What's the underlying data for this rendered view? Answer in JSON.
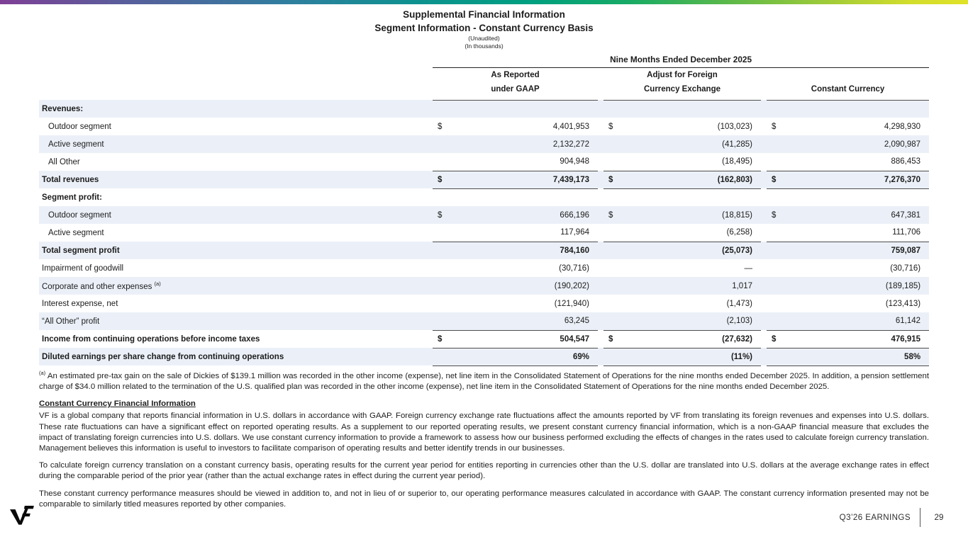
{
  "slide": {
    "title1": "Supplemental Financial Information",
    "title2": "Segment Information - Constant Currency Basis",
    "unaudited": "(Unaudited)",
    "in_thousands": "(In thousands)"
  },
  "table": {
    "period_header": "Nine Months Ended December 2025",
    "col_headers": [
      {
        "line1": "As Reported",
        "line2": "under GAAP"
      },
      {
        "line1": "Adjust for Foreign",
        "line2": "Currency Exchange"
      },
      {
        "line1": "",
        "line2": "Constant Currency"
      }
    ],
    "rows": [
      {
        "label": "Revenues:",
        "bold": true,
        "stripe": true
      },
      {
        "label": "Outdoor segment",
        "indent": true,
        "d1": "$",
        "v1": "4,401,953",
        "d2": "$",
        "v2": "(103,023)",
        "d3": "$",
        "v3": "4,298,930"
      },
      {
        "label": "Active segment",
        "indent": true,
        "stripe": true,
        "v1": "2,132,272",
        "v2": "(41,285)",
        "v3": "2,090,987"
      },
      {
        "label": "All Other",
        "indent": true,
        "v1": "904,948",
        "v2": "(18,495)",
        "v3": "886,453",
        "rule": true
      },
      {
        "label": "Total revenues",
        "bold": true,
        "stripe": true,
        "d1": "$",
        "v1": "7,439,173",
        "d2": "$",
        "v2": "(162,803)",
        "d3": "$",
        "v3": "7,276,370",
        "rule": true
      },
      {
        "label": "Segment profit:",
        "bold": true
      },
      {
        "label": "Outdoor segment",
        "indent": true,
        "stripe": true,
        "d1": "$",
        "v1": "666,196",
        "d2": "$",
        "v2": "(18,815)",
        "d3": "$",
        "v3": "647,381"
      },
      {
        "label": "Active segment",
        "indent": true,
        "v1": "117,964",
        "v2": "(6,258)",
        "v3": "111,706",
        "rule": true
      },
      {
        "label": "Total segment profit",
        "bold": true,
        "stripe": true,
        "v1": "784,160",
        "v2": "(25,073)",
        "v3": "759,087"
      },
      {
        "label": "Impairment of goodwill",
        "v1": "(30,716)",
        "v2": "—",
        "v3": "(30,716)"
      },
      {
        "label": "Corporate and other expenses",
        "sup": "(a)",
        "stripe": true,
        "v1": "(190,202)",
        "v2": "1,017",
        "v3": "(189,185)"
      },
      {
        "label": "Interest expense, net",
        "v1": "(121,940)",
        "v2": "(1,473)",
        "v3": "(123,413)"
      },
      {
        "label": "“All Other” profit",
        "stripe": true,
        "v1": "63,245",
        "v2": "(2,103)",
        "v3": "61,142",
        "rule": true
      },
      {
        "label": "Income from continuing operations before income taxes",
        "bold": true,
        "d1": "$",
        "v1": "504,547",
        "d2": "$",
        "v2": "(27,632)",
        "d3": "$",
        "v3": "476,915",
        "rule": true
      },
      {
        "label": "Diluted earnings per share change from continuing operations",
        "bold": true,
        "stripe": true,
        "v1": "69%",
        "v2": "(11%)",
        "v3": "58%",
        "rule": true
      }
    ]
  },
  "footnote": {
    "marker": "(a)",
    "text": " An estimated pre-tax gain on the sale of Dickies of $139.1 million was recorded in the other income (expense), net line item in the Consolidated Statement of Operations for the nine months ended December 2025. In addition, a pension settlement charge of $34.0 million related to the termination of the U.S. qualified plan was recorded in the other income (expense), net line item in the Consolidated Statement of Operations for the nine months ended December 2025."
  },
  "constant_currency": {
    "heading": "Constant Currency Financial Information",
    "paragraphs": [
      "VF is a global company that reports financial information in U.S. dollars in accordance with GAAP. Foreign currency exchange rate fluctuations affect the amounts reported by VF from translating its foreign revenues and expenses into U.S. dollars. These rate fluctuations can have a significant effect on reported operating results. As a supplement to our reported operating results, we present constant currency financial information, which is a non-GAAP financial measure that excludes the impact of translating foreign currencies into U.S. dollars. We use constant currency information to provide a framework to assess how our business performed excluding the effects of changes in the rates used to calculate foreign currency translation. Management believes this information is useful to investors to facilitate comparison of operating results and better identify trends in our businesses.",
      "To calculate foreign currency translation on a constant currency basis, operating results for the current year period for entities reporting in currencies other than the U.S. dollar are translated into U.S. dollars at the average exchange rates in effect during the comparable period of the prior year (rather than the actual exchange rates in effect during the current year period).",
      "These constant currency performance measures should be viewed in addition to, and not in lieu of or superior to, our operating performance measures calculated in accordance with GAAP. The constant currency information presented may not be comparable to similarly titled measures reported by other companies."
    ]
  },
  "footer": {
    "earnings_label": "Q3’26 EARNINGS",
    "page_number": "29"
  },
  "colors": {
    "stripe": "#ebf0f8",
    "rule": "#4d4d4d",
    "gradient_left": "#7e4096",
    "gradient_mid": "#00a080",
    "gradient_right": "#e0e228"
  }
}
